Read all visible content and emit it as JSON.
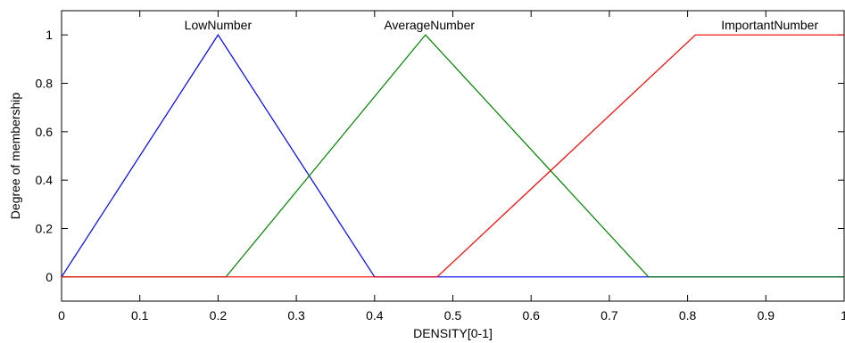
{
  "chart_data": {
    "type": "line",
    "xlabel": "DENSITY[0-1]",
    "ylabel": "Degree of membership",
    "xlim": [
      0,
      1
    ],
    "ylim": [
      -0.1,
      1.1
    ],
    "x_ticks": [
      0,
      0.1,
      0.2,
      0.3,
      0.4,
      0.5,
      0.6,
      0.7,
      0.8,
      0.9,
      1
    ],
    "x_tick_labels": [
      "0",
      "0.1",
      "0.2",
      "0.3",
      "0.4",
      "0.5",
      "0.6",
      "0.7",
      "0.8",
      "0.9",
      "1"
    ],
    "y_ticks": [
      0,
      0.2,
      0.4,
      0.6,
      0.8,
      1
    ],
    "y_tick_labels": [
      "0",
      "0.2",
      "0.4",
      "0.6",
      "0.8",
      "1"
    ],
    "grid": false,
    "legend": "none",
    "series": [
      {
        "name": "LowNumber",
        "color": "#0000ff",
        "x": [
          0,
          0.2,
          0.4,
          1
        ],
        "y": [
          0,
          1,
          0,
          0
        ],
        "label_at": [
          0.2,
          1
        ]
      },
      {
        "name": "AverageNumber",
        "color": "#008000",
        "x": [
          0,
          0.21,
          0.465,
          0.75,
          1
        ],
        "y": [
          0,
          0,
          1,
          0,
          0
        ],
        "label_at": [
          0.47,
          1
        ]
      },
      {
        "name": "ImportantNumber",
        "color": "#ff0000",
        "x": [
          0,
          0.48,
          0.81,
          1
        ],
        "y": [
          0,
          0,
          1,
          1
        ],
        "label_at": [
          0.905,
          1
        ]
      }
    ]
  }
}
